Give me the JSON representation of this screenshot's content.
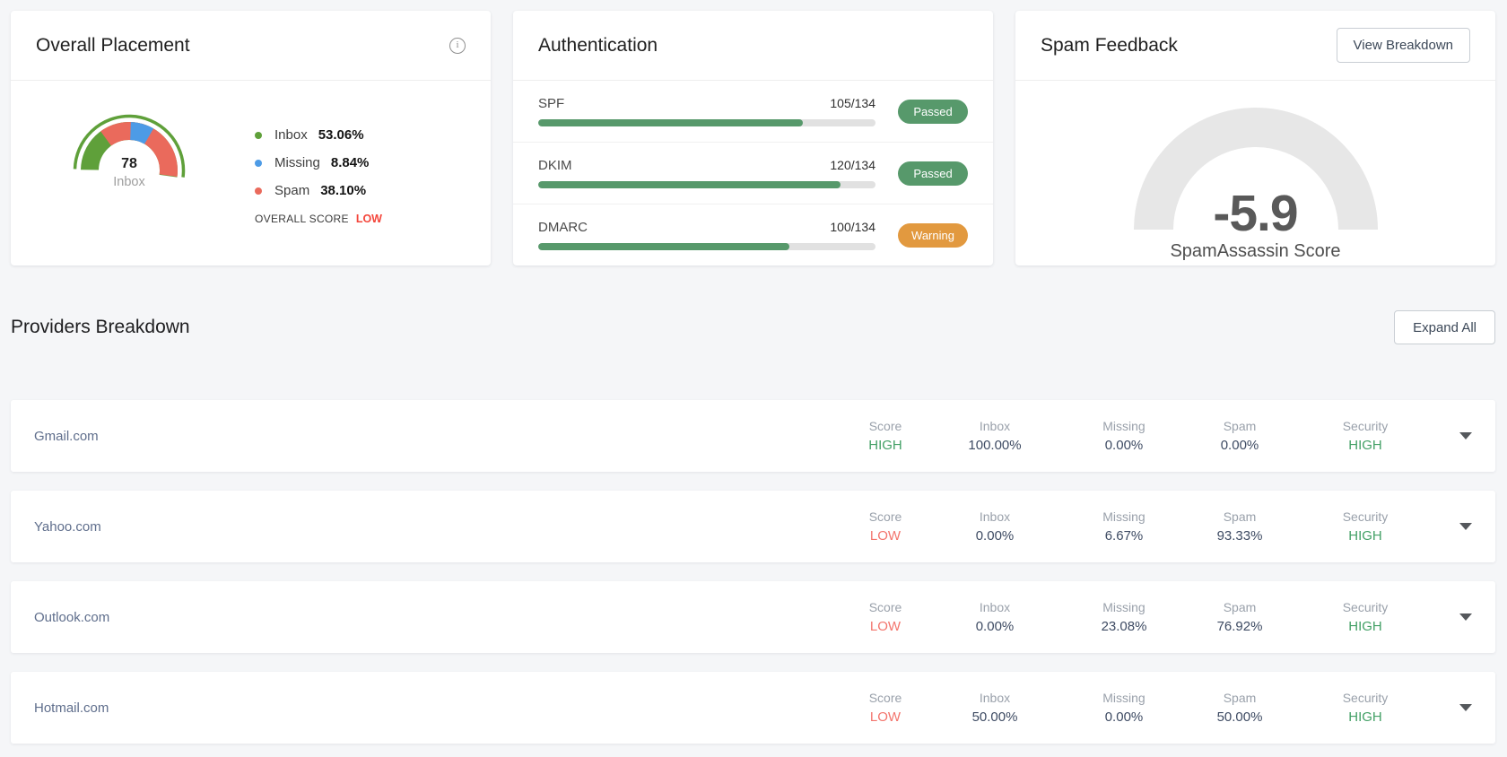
{
  "theme": {
    "page_bg": "#f5f6f8",
    "card_bg": "#ffffff",
    "donut_green": "#5fa03a",
    "donut_blue": "#4d9be6",
    "donut_red": "#ea6a5c",
    "bar_green": "#57996b",
    "warning_orange": "#e2993f",
    "overall_low_red": "#f4453a",
    "row_low_red": "#f3756d",
    "row_high_green": "#43a066",
    "gauge_gray": "#e7e7e7"
  },
  "overall_placement": {
    "title": "Overall Placement",
    "donut": {
      "center_value": "78",
      "center_label": "Inbox"
    },
    "legend": [
      {
        "label": "Inbox",
        "value": "53.06%",
        "color": "#5fa03a"
      },
      {
        "label": "Missing",
        "value": "8.84%",
        "color": "#4d9be6"
      },
      {
        "label": "Spam",
        "value": "38.10%",
        "color": "#ea6a5c"
      }
    ],
    "overall_score_label": "OVERALL SCORE",
    "overall_score_value": "LOW"
  },
  "authentication": {
    "title": "Authentication",
    "rows": [
      {
        "label": "SPF",
        "value": "105/134",
        "pct": 78.4,
        "status": "Passed",
        "status_type": "passed"
      },
      {
        "label": "DKIM",
        "value": "120/134",
        "pct": 89.6,
        "status": "Passed",
        "status_type": "passed"
      },
      {
        "label": "DMARC",
        "value": "100/134",
        "pct": 74.6,
        "status": "Warning",
        "status_type": "warning"
      }
    ]
  },
  "spam_feedback": {
    "title": "Spam Feedback",
    "button_label": "View Breakdown",
    "score": "-5.9",
    "score_label": "SpamAssassin Score"
  },
  "providers": {
    "title": "Providers Breakdown",
    "expand_all_label": "Expand All",
    "columns": [
      "Score",
      "Inbox",
      "Missing",
      "Spam",
      "Security"
    ],
    "rows": [
      {
        "name": "Gmail.com",
        "values": [
          {
            "v": "HIGH",
            "t": "high"
          },
          {
            "v": "100.00%"
          },
          {
            "v": "0.00%"
          },
          {
            "v": "0.00%"
          },
          {
            "v": "HIGH",
            "t": "high"
          }
        ]
      },
      {
        "name": "Yahoo.com",
        "values": [
          {
            "v": "LOW",
            "t": "low"
          },
          {
            "v": "0.00%"
          },
          {
            "v": "6.67%"
          },
          {
            "v": "93.33%"
          },
          {
            "v": "HIGH",
            "t": "high"
          }
        ]
      },
      {
        "name": "Outlook.com",
        "values": [
          {
            "v": "LOW",
            "t": "low"
          },
          {
            "v": "0.00%"
          },
          {
            "v": "23.08%"
          },
          {
            "v": "76.92%"
          },
          {
            "v": "HIGH",
            "t": "high"
          }
        ]
      },
      {
        "name": "Hotmail.com",
        "values": [
          {
            "v": "LOW",
            "t": "low"
          },
          {
            "v": "50.00%"
          },
          {
            "v": "0.00%"
          },
          {
            "v": "50.00%"
          },
          {
            "v": "HIGH",
            "t": "high"
          }
        ]
      }
    ]
  },
  "chart_data": [
    {
      "type": "pie",
      "subtype": "donut",
      "title": "Overall Placement",
      "center_value": "78",
      "center_label": "Inbox",
      "start_angle_clockwise_from_top": 269,
      "segments": [
        {
          "label": "Inbox",
          "value": 53.06,
          "color": "#5fa03a"
        },
        {
          "label": "Spam",
          "value": 38.1,
          "color": "#ea6a5c"
        },
        {
          "label": "Missing",
          "value": 8.84,
          "color": "#4d9be6"
        }
      ],
      "annotation": "OVERALL SCORE LOW"
    },
    {
      "type": "bar",
      "subtype": "progress",
      "title": "Authentication",
      "categories": [
        "SPF",
        "DKIM",
        "DMARC"
      ],
      "values": [
        105,
        120,
        100
      ],
      "totals": [
        134,
        134,
        134
      ],
      "statuses": [
        "Passed",
        "Passed",
        "Warning"
      ]
    },
    {
      "type": "gauge",
      "title": "Spam Feedback",
      "value": -5.9,
      "label": "SpamAssassin Score"
    }
  ]
}
